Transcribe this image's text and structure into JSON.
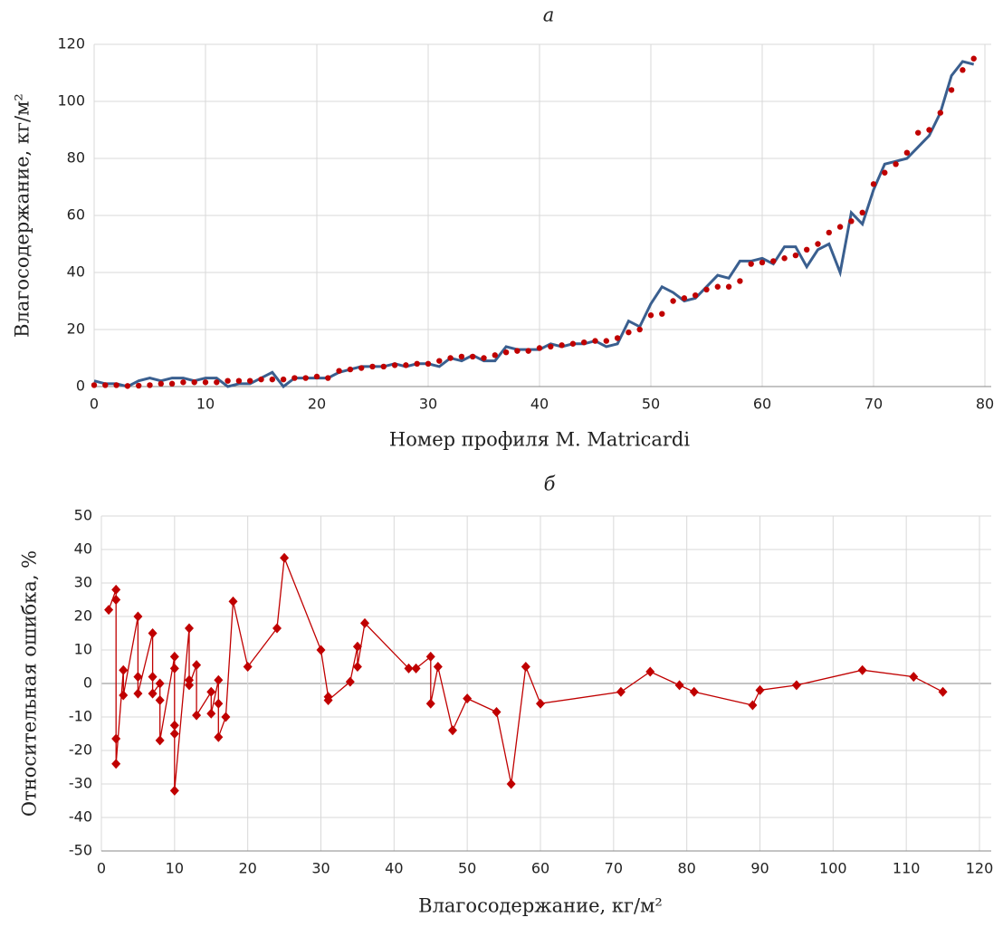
{
  "chart_data": [
    {
      "type": "line",
      "title": "а",
      "x_label": "Номер профиля M. Matricardi",
      "y_label": "Влагосодержание, кг/м²",
      "x": [
        0,
        1,
        2,
        3,
        4,
        5,
        6,
        7,
        8,
        9,
        10,
        11,
        12,
        13,
        14,
        15,
        16,
        17,
        18,
        19,
        20,
        21,
        22,
        23,
        24,
        25,
        26,
        27,
        28,
        29,
        30,
        31,
        32,
        33,
        34,
        35,
        36,
        37,
        38,
        39,
        40,
        41,
        42,
        43,
        44,
        45,
        46,
        47,
        48,
        49,
        50,
        51,
        52,
        53,
        54,
        55,
        56,
        57,
        58,
        59,
        60,
        61,
        62,
        63,
        64,
        65,
        66,
        67,
        68,
        69,
        70,
        71,
        72,
        73,
        74,
        75,
        76,
        77,
        78,
        79
      ],
      "series": [
        {
          "color": "#3a5f8f",
          "style": "line",
          "values": [
            2,
            1,
            1,
            0,
            2,
            3,
            2,
            3,
            3,
            2,
            3,
            3,
            0,
            1,
            1,
            3,
            5,
            0,
            3,
            3,
            3,
            3,
            5,
            6,
            7,
            7,
            7,
            8,
            7,
            8,
            8,
            7,
            10,
            9,
            11,
            9,
            9,
            14,
            13,
            13,
            13,
            15,
            14,
            15,
            15,
            16,
            14,
            15,
            23,
            21,
            29,
            35,
            33,
            30,
            31,
            35,
            39,
            38,
            44,
            44,
            45,
            43,
            49,
            49,
            42,
            48,
            50,
            40,
            61,
            57,
            69,
            78,
            79,
            80,
            84,
            88,
            96,
            109,
            114,
            113
          ]
        },
        {
          "color": "#c00000",
          "style": "dots",
          "values": [
            0.5,
            0.5,
            0.5,
            0.2,
            0.3,
            0.5,
            1,
            1,
            1.5,
            1.5,
            1.5,
            1.5,
            2,
            2,
            2,
            2.5,
            2.5,
            2.5,
            3,
            3,
            3.5,
            3,
            5.5,
            6,
            6.5,
            7,
            7,
            7.5,
            7.5,
            8,
            8,
            9,
            10,
            10.5,
            10.5,
            10,
            11,
            12,
            12.5,
            12.5,
            13.5,
            14,
            14.5,
            15,
            15.5,
            16,
            16,
            17,
            19,
            20,
            25,
            25.5,
            30,
            31,
            32,
            34,
            35,
            35,
            37,
            43,
            43.5,
            44,
            45,
            46,
            48,
            50,
            54,
            56,
            58,
            61,
            71,
            75,
            78,
            82,
            89,
            90,
            96,
            104,
            111,
            115
          ]
        }
      ],
      "xlim": [
        0,
        80
      ],
      "xticks": [
        0,
        10,
        20,
        30,
        40,
        50,
        60,
        70,
        80
      ],
      "ylim": [
        0,
        120
      ],
      "yticks": [
        0,
        20,
        40,
        60,
        80,
        100,
        120
      ],
      "grid": true
    },
    {
      "type": "line",
      "title": "б",
      "x_label": "Влагосодержание, кг/м²",
      "y_label": "Относительная ошибка, %",
      "x": [
        1,
        2,
        2,
        2,
        2,
        3,
        3,
        5,
        5,
        5,
        7,
        7,
        7,
        8,
        8,
        8,
        10,
        10,
        10,
        10,
        10,
        12,
        12,
        12,
        13,
        13,
        15,
        15,
        16,
        16,
        16,
        17,
        18,
        20,
        24,
        25,
        30,
        31,
        31,
        34,
        35,
        35,
        36,
        42,
        43,
        45,
        45,
        46,
        48,
        50,
        54,
        56,
        58,
        60,
        71,
        75,
        79,
        81,
        89,
        90,
        95,
        104,
        111,
        115
      ],
      "series": [
        {
          "color": "#c00000",
          "style": "diamonds",
          "values": [
            22,
            28,
            25,
            -16.5,
            -24,
            4,
            -3.5,
            20,
            2,
            -3,
            15,
            2,
            -3,
            0,
            -5,
            -17,
            8,
            4.5,
            -12.5,
            -15,
            -32,
            16.5,
            1,
            -0.5,
            5.5,
            -9.5,
            -2.5,
            -9,
            1,
            -6,
            -16,
            -10,
            24.5,
            5,
            16.5,
            37.5,
            10,
            -4,
            -5,
            0.5,
            11,
            5,
            18,
            4.5,
            4.5,
            8,
            -6,
            5,
            -14,
            -4.5,
            -8.5,
            -30,
            5,
            -6,
            -2.5,
            3.5,
            -0.5,
            -2.5,
            -6.5,
            -2,
            -0.5,
            4,
            2,
            -2.5
          ]
        }
      ],
      "xlim": [
        0,
        120
      ],
      "xticks": [
        0,
        10,
        20,
        30,
        40,
        50,
        60,
        70,
        80,
        90,
        100,
        110,
        120
      ],
      "ylim": [
        -50,
        50
      ],
      "yticks": [
        -50,
        -40,
        -30,
        -20,
        -10,
        0,
        10,
        20,
        30,
        40,
        50
      ],
      "grid": true
    }
  ]
}
